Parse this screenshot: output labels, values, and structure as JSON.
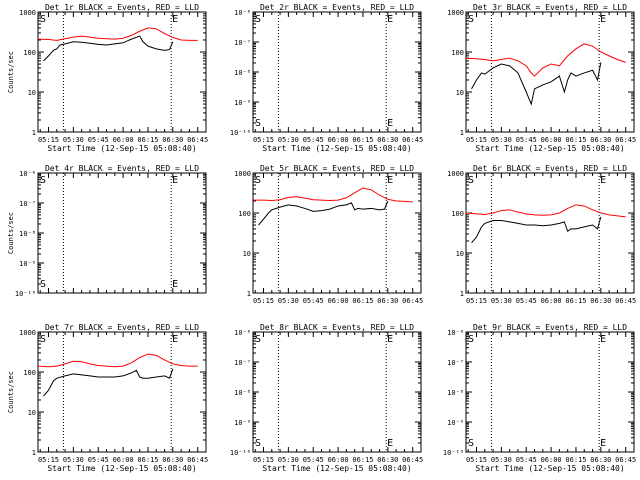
{
  "chart_data": [
    {
      "type": "line",
      "title": "Det 1r BLACK = Events, RED = LLD",
      "ylabel": "Counts/sec",
      "xlabel": "Start Time (12-Sep-15 05:08:40)",
      "xticks": [
        "05:15",
        "05:30",
        "05:45",
        "06:00",
        "06:15",
        "06:30",
        "06:45"
      ],
      "yscale": "log",
      "ylim": [
        1,
        1000
      ],
      "yticks": [
        "1",
        "10",
        "100",
        "1000"
      ],
      "markers": [
        "S",
        "E"
      ],
      "series": [
        {
          "color": "#ff0000",
          "x": [
            "05:08",
            "05:15",
            "05:20",
            "05:25",
            "05:30",
            "05:35",
            "05:40",
            "05:45",
            "05:50",
            "05:55",
            "06:00",
            "06:05",
            "06:10",
            "06:15",
            "06:20",
            "06:25",
            "06:30",
            "06:35",
            "06:40",
            "06:45"
          ],
          "y": [
            210,
            205,
            195,
            215,
            235,
            250,
            235,
            220,
            215,
            210,
            220,
            260,
            330,
            400,
            380,
            290,
            230,
            200,
            195,
            195
          ]
        },
        {
          "color": "#000000",
          "x": [
            "05:12",
            "05:15",
            "05:18",
            "05:20",
            "05:22",
            "05:25",
            "05:30",
            "05:35",
            "05:40",
            "05:45",
            "05:50",
            "05:55",
            "06:00",
            "06:05",
            "06:10",
            "06:12",
            "06:15",
            "06:20",
            "06:25",
            "06:28",
            "06:30"
          ],
          "y": [
            60,
            80,
            110,
            120,
            150,
            160,
            180,
            175,
            165,
            155,
            150,
            160,
            170,
            210,
            250,
            180,
            140,
            120,
            110,
            115,
            180
          ]
        }
      ]
    },
    {
      "type": "line",
      "title": "Det 2r BLACK = Events, RED = LLD",
      "ylabel": "",
      "xlabel": "Start Time (12-Sep-15 05:08:40)",
      "xticks": [
        "05:15",
        "05:30",
        "05:45",
        "06:00",
        "06:15",
        "06:30",
        "06:45"
      ],
      "yscale": "log",
      "ylim": [
        1e-10,
        1e-06
      ],
      "yticks": [
        "10⁻⁶",
        "10⁻⁷",
        "10⁻⁸",
        "10⁻⁹",
        "10⁻¹⁰"
      ],
      "markers": [
        "S",
        "E"
      ],
      "series": []
    },
    {
      "type": "line",
      "title": "Det 3r BLACK = Events, RED = LLD",
      "ylabel": "",
      "xlabel": "Start Time (12-Sep-15 05:08:40)",
      "xticks": [
        "05:15",
        "05:30",
        "05:45",
        "06:00",
        "06:15",
        "06:30",
        "06:45"
      ],
      "yscale": "log",
      "ylim": [
        1,
        1000
      ],
      "yticks": [
        "1",
        "10",
        "100",
        "1000"
      ],
      "markers": [
        "S",
        "E"
      ],
      "series": [
        {
          "color": "#ff0000",
          "x": [
            "05:08",
            "05:15",
            "05:20",
            "05:25",
            "05:30",
            "05:35",
            "05:40",
            "05:45",
            "05:48",
            "05:50",
            "05:55",
            "06:00",
            "06:05",
            "06:10",
            "06:15",
            "06:20",
            "06:25",
            "06:30",
            "06:35",
            "06:40",
            "06:45"
          ],
          "y": [
            70,
            68,
            65,
            60,
            65,
            70,
            60,
            45,
            30,
            25,
            40,
            50,
            45,
            80,
            120,
            160,
            140,
            100,
            80,
            65,
            55
          ]
        },
        {
          "color": "#000000",
          "x": [
            "05:12",
            "05:15",
            "05:18",
            "05:20",
            "05:25",
            "05:30",
            "05:35",
            "05:40",
            "05:45",
            "05:48",
            "05:50",
            "05:55",
            "06:00",
            "06:05",
            "06:08",
            "06:10",
            "06:12",
            "06:15",
            "06:20",
            "06:25",
            "06:28",
            "06:30"
          ],
          "y": [
            12,
            20,
            30,
            28,
            40,
            50,
            45,
            30,
            10,
            5,
            12,
            15,
            18,
            25,
            10,
            20,
            30,
            25,
            30,
            35,
            20,
            55
          ]
        }
      ]
    },
    {
      "type": "line",
      "title": "Det 4r BLACK = Events, RED = LLD",
      "ylabel": "Counts/sec",
      "xlabel": "",
      "xticks": [],
      "yscale": "log",
      "ylim": [
        1e-10,
        1e-06
      ],
      "yticks": [
        "10⁻⁶",
        "10⁻⁷",
        "10⁻⁸",
        "10⁻⁹",
        "10⁻¹⁰"
      ],
      "markers": [
        "S",
        "E"
      ],
      "series": []
    },
    {
      "type": "line",
      "title": "Det 5r BLACK = Events, RED = LLD",
      "ylabel": "",
      "xlabel": "",
      "xticks": [
        "05:15",
        "05:30",
        "05:45",
        "06:00",
        "06:15",
        "06:30",
        "06:45"
      ],
      "yscale": "log",
      "ylim": [
        1,
        1000
      ],
      "yticks": [
        "1",
        "10",
        "100",
        "1000"
      ],
      "markers": [
        "S",
        "E"
      ],
      "series": [
        {
          "color": "#ff0000",
          "x": [
            "05:08",
            "05:15",
            "05:20",
            "05:25",
            "05:30",
            "05:35",
            "05:40",
            "05:45",
            "05:50",
            "05:55",
            "06:00",
            "06:05",
            "06:10",
            "06:15",
            "06:20",
            "06:25",
            "06:30",
            "06:35",
            "06:40",
            "06:45"
          ],
          "y": [
            210,
            210,
            205,
            215,
            245,
            255,
            235,
            215,
            210,
            205,
            210,
            240,
            320,
            420,
            380,
            280,
            220,
            200,
            195,
            190
          ]
        },
        {
          "color": "#000000",
          "x": [
            "05:12",
            "05:15",
            "05:18",
            "05:20",
            "05:25",
            "05:30",
            "05:35",
            "05:40",
            "05:45",
            "05:50",
            "05:55",
            "06:00",
            "06:05",
            "06:08",
            "06:10",
            "06:12",
            "06:15",
            "06:20",
            "06:25",
            "06:28",
            "06:30"
          ],
          "y": [
            50,
            70,
            100,
            120,
            140,
            160,
            150,
            130,
            110,
            115,
            125,
            150,
            160,
            180,
            120,
            130,
            125,
            130,
            120,
            125,
            200
          ]
        }
      ]
    },
    {
      "type": "line",
      "title": "Det 6r BLACK = Events, RED = LLD",
      "ylabel": "",
      "xlabel": "",
      "xticks": [
        "05:15",
        "05:30",
        "05:45",
        "06:00",
        "06:15",
        "06:30",
        "06:45"
      ],
      "yscale": "log",
      "ylim": [
        1,
        1000
      ],
      "yticks": [
        "1",
        "10",
        "100",
        "1000"
      ],
      "markers": [
        "S",
        "E"
      ],
      "series": [
        {
          "color": "#ff0000",
          "x": [
            "05:08",
            "05:15",
            "05:20",
            "05:25",
            "05:30",
            "05:35",
            "05:40",
            "05:45",
            "05:50",
            "05:55",
            "06:00",
            "06:05",
            "06:10",
            "06:15",
            "06:20",
            "06:25",
            "06:30",
            "06:35",
            "06:40",
            "06:45"
          ],
          "y": [
            100,
            95,
            92,
            100,
            115,
            120,
            105,
            95,
            90,
            88,
            90,
            100,
            130,
            160,
            150,
            120,
            100,
            90,
            85,
            80
          ]
        },
        {
          "color": "#000000",
          "x": [
            "05:12",
            "05:15",
            "05:18",
            "05:20",
            "05:25",
            "05:30",
            "05:35",
            "05:40",
            "05:45",
            "05:50",
            "05:55",
            "06:00",
            "06:05",
            "06:08",
            "06:10",
            "06:12",
            "06:15",
            "06:20",
            "06:25",
            "06:28",
            "06:30"
          ],
          "y": [
            18,
            25,
            45,
            55,
            65,
            65,
            60,
            55,
            50,
            50,
            48,
            50,
            55,
            60,
            35,
            40,
            40,
            45,
            50,
            40,
            80
          ]
        }
      ]
    },
    {
      "type": "line",
      "title": "Det 7r BLACK = Events, RED = LLD",
      "ylabel": "Counts/sec",
      "xlabel": "Start Time (12-Sep-15 05:08:40)",
      "xticks": [
        "05:15",
        "05:30",
        "05:45",
        "06:00",
        "06:15",
        "06:30",
        "06:45"
      ],
      "yscale": "log",
      "ylim": [
        1,
        1000
      ],
      "yticks": [
        "1",
        "10",
        "100",
        "1000"
      ],
      "markers": [
        "S",
        "E"
      ],
      "series": [
        {
          "color": "#ff0000",
          "x": [
            "05:08",
            "05:15",
            "05:20",
            "05:25",
            "05:30",
            "05:35",
            "05:40",
            "05:45",
            "05:50",
            "05:55",
            "06:00",
            "06:05",
            "06:10",
            "06:15",
            "06:20",
            "06:25",
            "06:30",
            "06:35",
            "06:40",
            "06:45"
          ],
          "y": [
            140,
            135,
            140,
            160,
            185,
            180,
            160,
            145,
            140,
            135,
            140,
            170,
            230,
            280,
            260,
            200,
            160,
            145,
            140,
            140
          ]
        },
        {
          "color": "#000000",
          "x": [
            "05:12",
            "05:15",
            "05:18",
            "05:20",
            "05:25",
            "05:30",
            "05:35",
            "05:40",
            "05:45",
            "05:50",
            "05:55",
            "06:00",
            "06:05",
            "06:08",
            "06:10",
            "06:12",
            "06:15",
            "06:20",
            "06:25",
            "06:28",
            "06:30"
          ],
          "y": [
            25,
            35,
            60,
            70,
            80,
            90,
            85,
            80,
            75,
            75,
            75,
            80,
            95,
            110,
            75,
            70,
            70,
            75,
            80,
            70,
            120
          ]
        }
      ]
    },
    {
      "type": "line",
      "title": "Det 8r BLACK = Events, RED = LLD",
      "ylabel": "",
      "xlabel": "Start Time (12-Sep-15 05:08:40)",
      "xticks": [
        "05:15",
        "05:30",
        "05:45",
        "06:00",
        "06:15",
        "06:30",
        "06:45"
      ],
      "yscale": "log",
      "ylim": [
        1e-10,
        1e-06
      ],
      "yticks": [
        "10⁻⁶",
        "10⁻⁷",
        "10⁻⁸",
        "10⁻⁹",
        "10⁻¹⁰"
      ],
      "markers": [
        "S",
        "E"
      ],
      "series": []
    },
    {
      "type": "line",
      "title": "Det 9r BLACK = Events, RED = LLD",
      "ylabel": "",
      "xlabel": "Start Time (12-Sep-15 05:08:40)",
      "xticks": [
        "05:15",
        "05:30",
        "05:45",
        "06:00",
        "06:15",
        "06:30",
        "06:45"
      ],
      "yscale": "log",
      "ylim": [
        1e-10,
        1e-06
      ],
      "yticks": [
        "10⁻⁶",
        "10⁻⁷",
        "10⁻⁸",
        "10⁻⁹",
        "10⁻¹⁰"
      ],
      "markers": [
        "S",
        "E"
      ],
      "series": []
    }
  ]
}
